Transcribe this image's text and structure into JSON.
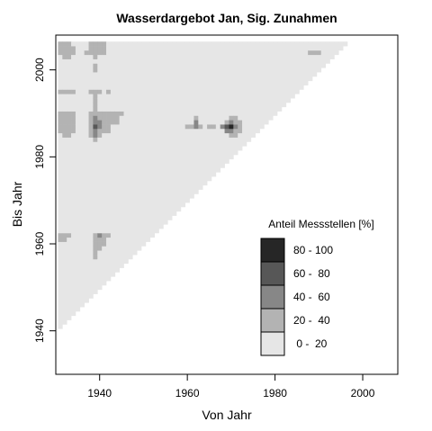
{
  "chart_data": {
    "type": "heatmap",
    "title": "Wasserdargebot Jan, Sig. Zunahmen",
    "xlabel": "Von Jahr",
    "ylabel": "Bis Jahr",
    "xlim": [
      1930,
      2008
    ],
    "ylim": [
      1930,
      2008
    ],
    "x_ticks": [
      1940,
      1960,
      1980,
      2000
    ],
    "y_ticks": [
      1940,
      1960,
      1980,
      2000
    ],
    "x_tick_labels": [
      "1940",
      "1960",
      "1980",
      "2000"
    ],
    "y_tick_labels": [
      "1940",
      "1960",
      "1980",
      "2000"
    ],
    "cell_unit_years": 1,
    "valid_region": "bis_jahr >= von_jahr + 10",
    "valid_from_year": 1931,
    "valid_to_year": 2006,
    "default_class": 0,
    "legend": {
      "title": "Anteil Messstellen [%]",
      "placement": "bottom-right",
      "classes": [
        {
          "label": "80 - 100",
          "color": "#262626"
        },
        {
          "label": "60 -  80",
          "color": "#575757"
        },
        {
          "label": "40 -  60",
          "color": "#878787"
        },
        {
          "label": "20 -  40",
          "color": "#b3b3b3"
        },
        {
          "label": " 0 -  20",
          "color": "#e6e6e6"
        }
      ]
    },
    "class_colors": [
      "#e6e6e6",
      "#b3b3b3",
      "#878787",
      "#575757",
      "#262626"
    ],
    "highlight_cells": [
      {
        "x": 1931,
        "y": 2006,
        "class": 1
      },
      {
        "x": 1932,
        "y": 2006,
        "class": 1
      },
      {
        "x": 1933,
        "y": 2006,
        "class": 1
      },
      {
        "x": 1938,
        "y": 2006,
        "class": 1
      },
      {
        "x": 1939,
        "y": 2006,
        "class": 1
      },
      {
        "x": 1940,
        "y": 2006,
        "class": 1
      },
      {
        "x": 1941,
        "y": 2006,
        "class": 1
      },
      {
        "x": 1931,
        "y": 2005,
        "class": 1
      },
      {
        "x": 1932,
        "y": 2005,
        "class": 1
      },
      {
        "x": 1933,
        "y": 2005,
        "class": 1
      },
      {
        "x": 1934,
        "y": 2005,
        "class": 1
      },
      {
        "x": 1938,
        "y": 2005,
        "class": 1
      },
      {
        "x": 1939,
        "y": 2005,
        "class": 1
      },
      {
        "x": 1940,
        "y": 2005,
        "class": 1
      },
      {
        "x": 1941,
        "y": 2005,
        "class": 1
      },
      {
        "x": 1931,
        "y": 2004,
        "class": 1
      },
      {
        "x": 1932,
        "y": 2004,
        "class": 1
      },
      {
        "x": 1933,
        "y": 2004,
        "class": 1
      },
      {
        "x": 1934,
        "y": 2004,
        "class": 1
      },
      {
        "x": 1937,
        "y": 2004,
        "class": 1
      },
      {
        "x": 1938,
        "y": 2004,
        "class": 1
      },
      {
        "x": 1939,
        "y": 2004,
        "class": 1
      },
      {
        "x": 1940,
        "y": 2004,
        "class": 1
      },
      {
        "x": 1941,
        "y": 2004,
        "class": 1
      },
      {
        "x": 1988,
        "y": 2004,
        "class": 1
      },
      {
        "x": 1989,
        "y": 2004,
        "class": 1
      },
      {
        "x": 1990,
        "y": 2004,
        "class": 1
      },
      {
        "x": 1932,
        "y": 2003,
        "class": 1
      },
      {
        "x": 1933,
        "y": 2003,
        "class": 1
      },
      {
        "x": 1939,
        "y": 2003,
        "class": 1
      },
      {
        "x": 1939,
        "y": 2001,
        "class": 1
      },
      {
        "x": 1939,
        "y": 2000,
        "class": 1
      },
      {
        "x": 1931,
        "y": 1995,
        "class": 1
      },
      {
        "x": 1932,
        "y": 1995,
        "class": 1
      },
      {
        "x": 1933,
        "y": 1995,
        "class": 1
      },
      {
        "x": 1934,
        "y": 1995,
        "class": 1
      },
      {
        "x": 1938,
        "y": 1995,
        "class": 1
      },
      {
        "x": 1939,
        "y": 1995,
        "class": 1
      },
      {
        "x": 1940,
        "y": 1995,
        "class": 1
      },
      {
        "x": 1942,
        "y": 1995,
        "class": 1
      },
      {
        "x": 1939,
        "y": 1994,
        "class": 1
      },
      {
        "x": 1939,
        "y": 1993,
        "class": 1
      },
      {
        "x": 1939,
        "y": 1992,
        "class": 1
      },
      {
        "x": 1939,
        "y": 1991,
        "class": 1
      },
      {
        "x": 1931,
        "y": 1990,
        "class": 1
      },
      {
        "x": 1932,
        "y": 1990,
        "class": 1
      },
      {
        "x": 1933,
        "y": 1990,
        "class": 1
      },
      {
        "x": 1934,
        "y": 1990,
        "class": 1
      },
      {
        "x": 1938,
        "y": 1990,
        "class": 1
      },
      {
        "x": 1939,
        "y": 1990,
        "class": 1
      },
      {
        "x": 1940,
        "y": 1990,
        "class": 1
      },
      {
        "x": 1941,
        "y": 1990,
        "class": 1
      },
      {
        "x": 1942,
        "y": 1990,
        "class": 1
      },
      {
        "x": 1943,
        "y": 1990,
        "class": 1
      },
      {
        "x": 1944,
        "y": 1990,
        "class": 1
      },
      {
        "x": 1945,
        "y": 1990,
        "class": 1
      },
      {
        "x": 1931,
        "y": 1989,
        "class": 1
      },
      {
        "x": 1932,
        "y": 1989,
        "class": 1
      },
      {
        "x": 1933,
        "y": 1989,
        "class": 1
      },
      {
        "x": 1934,
        "y": 1989,
        "class": 1
      },
      {
        "x": 1938,
        "y": 1989,
        "class": 1
      },
      {
        "x": 1939,
        "y": 1989,
        "class": 2
      },
      {
        "x": 1940,
        "y": 1989,
        "class": 1
      },
      {
        "x": 1941,
        "y": 1989,
        "class": 1
      },
      {
        "x": 1942,
        "y": 1989,
        "class": 1
      },
      {
        "x": 1943,
        "y": 1989,
        "class": 1
      },
      {
        "x": 1944,
        "y": 1989,
        "class": 1
      },
      {
        "x": 1962,
        "y": 1989,
        "class": 1
      },
      {
        "x": 1970,
        "y": 1989,
        "class": 1
      },
      {
        "x": 1971,
        "y": 1989,
        "class": 1
      },
      {
        "x": 1931,
        "y": 1988,
        "class": 1
      },
      {
        "x": 1932,
        "y": 1988,
        "class": 1
      },
      {
        "x": 1933,
        "y": 1988,
        "class": 1
      },
      {
        "x": 1934,
        "y": 1988,
        "class": 1
      },
      {
        "x": 1938,
        "y": 1988,
        "class": 1
      },
      {
        "x": 1939,
        "y": 1988,
        "class": 2
      },
      {
        "x": 1940,
        "y": 1988,
        "class": 2
      },
      {
        "x": 1941,
        "y": 1988,
        "class": 1
      },
      {
        "x": 1942,
        "y": 1988,
        "class": 1
      },
      {
        "x": 1943,
        "y": 1988,
        "class": 1
      },
      {
        "x": 1944,
        "y": 1988,
        "class": 1
      },
      {
        "x": 1962,
        "y": 1988,
        "class": 2
      },
      {
        "x": 1969,
        "y": 1988,
        "class": 1
      },
      {
        "x": 1970,
        "y": 1988,
        "class": 2
      },
      {
        "x": 1971,
        "y": 1988,
        "class": 1
      },
      {
        "x": 1972,
        "y": 1988,
        "class": 1
      },
      {
        "x": 1931,
        "y": 1987,
        "class": 1
      },
      {
        "x": 1932,
        "y": 1987,
        "class": 1
      },
      {
        "x": 1933,
        "y": 1987,
        "class": 1
      },
      {
        "x": 1934,
        "y": 1987,
        "class": 1
      },
      {
        "x": 1938,
        "y": 1987,
        "class": 1
      },
      {
        "x": 1939,
        "y": 1987,
        "class": 3
      },
      {
        "x": 1940,
        "y": 1987,
        "class": 2
      },
      {
        "x": 1941,
        "y": 1987,
        "class": 1
      },
      {
        "x": 1942,
        "y": 1987,
        "class": 1
      },
      {
        "x": 1960,
        "y": 1987,
        "class": 1
      },
      {
        "x": 1961,
        "y": 1987,
        "class": 1
      },
      {
        "x": 1962,
        "y": 1987,
        "class": 2
      },
      {
        "x": 1963,
        "y": 1987,
        "class": 1
      },
      {
        "x": 1965,
        "y": 1987,
        "class": 1
      },
      {
        "x": 1966,
        "y": 1987,
        "class": 1
      },
      {
        "x": 1968,
        "y": 1987,
        "class": 2
      },
      {
        "x": 1969,
        "y": 1987,
        "class": 3
      },
      {
        "x": 1970,
        "y": 1987,
        "class": 4
      },
      {
        "x": 1971,
        "y": 1987,
        "class": 2
      },
      {
        "x": 1972,
        "y": 1987,
        "class": 1
      },
      {
        "x": 1931,
        "y": 1986,
        "class": 1
      },
      {
        "x": 1932,
        "y": 1986,
        "class": 1
      },
      {
        "x": 1933,
        "y": 1986,
        "class": 1
      },
      {
        "x": 1934,
        "y": 1986,
        "class": 1
      },
      {
        "x": 1938,
        "y": 1986,
        "class": 1
      },
      {
        "x": 1939,
        "y": 1986,
        "class": 2
      },
      {
        "x": 1940,
        "y": 1986,
        "class": 1
      },
      {
        "x": 1941,
        "y": 1986,
        "class": 1
      },
      {
        "x": 1942,
        "y": 1986,
        "class": 1
      },
      {
        "x": 1969,
        "y": 1986,
        "class": 2
      },
      {
        "x": 1970,
        "y": 1986,
        "class": 2
      },
      {
        "x": 1971,
        "y": 1986,
        "class": 1
      },
      {
        "x": 1972,
        "y": 1986,
        "class": 1
      },
      {
        "x": 1932,
        "y": 1985,
        "class": 1
      },
      {
        "x": 1933,
        "y": 1985,
        "class": 1
      },
      {
        "x": 1938,
        "y": 1985,
        "class": 1
      },
      {
        "x": 1939,
        "y": 1985,
        "class": 2
      },
      {
        "x": 1940,
        "y": 1985,
        "class": 1
      },
      {
        "x": 1970,
        "y": 1985,
        "class": 1
      },
      {
        "x": 1971,
        "y": 1985,
        "class": 1
      },
      {
        "x": 1939,
        "y": 1984,
        "class": 1
      },
      {
        "x": 1931,
        "y": 1962,
        "class": 1
      },
      {
        "x": 1932,
        "y": 1962,
        "class": 1
      },
      {
        "x": 1933,
        "y": 1962,
        "class": 1
      },
      {
        "x": 1939,
        "y": 1962,
        "class": 1
      },
      {
        "x": 1940,
        "y": 1962,
        "class": 2
      },
      {
        "x": 1941,
        "y": 1962,
        "class": 1
      },
      {
        "x": 1942,
        "y": 1962,
        "class": 1
      },
      {
        "x": 1931,
        "y": 1961,
        "class": 1
      },
      {
        "x": 1932,
        "y": 1961,
        "class": 1
      },
      {
        "x": 1939,
        "y": 1961,
        "class": 1
      },
      {
        "x": 1940,
        "y": 1961,
        "class": 1
      },
      {
        "x": 1941,
        "y": 1961,
        "class": 1
      },
      {
        "x": 1939,
        "y": 1960,
        "class": 1
      },
      {
        "x": 1940,
        "y": 1960,
        "class": 1
      },
      {
        "x": 1941,
        "y": 1960,
        "class": 1
      },
      {
        "x": 1939,
        "y": 1959,
        "class": 1
      },
      {
        "x": 1940,
        "y": 1959,
        "class": 1
      },
      {
        "x": 1939,
        "y": 1958,
        "class": 1
      },
      {
        "x": 1939,
        "y": 1957,
        "class": 1
      }
    ]
  }
}
